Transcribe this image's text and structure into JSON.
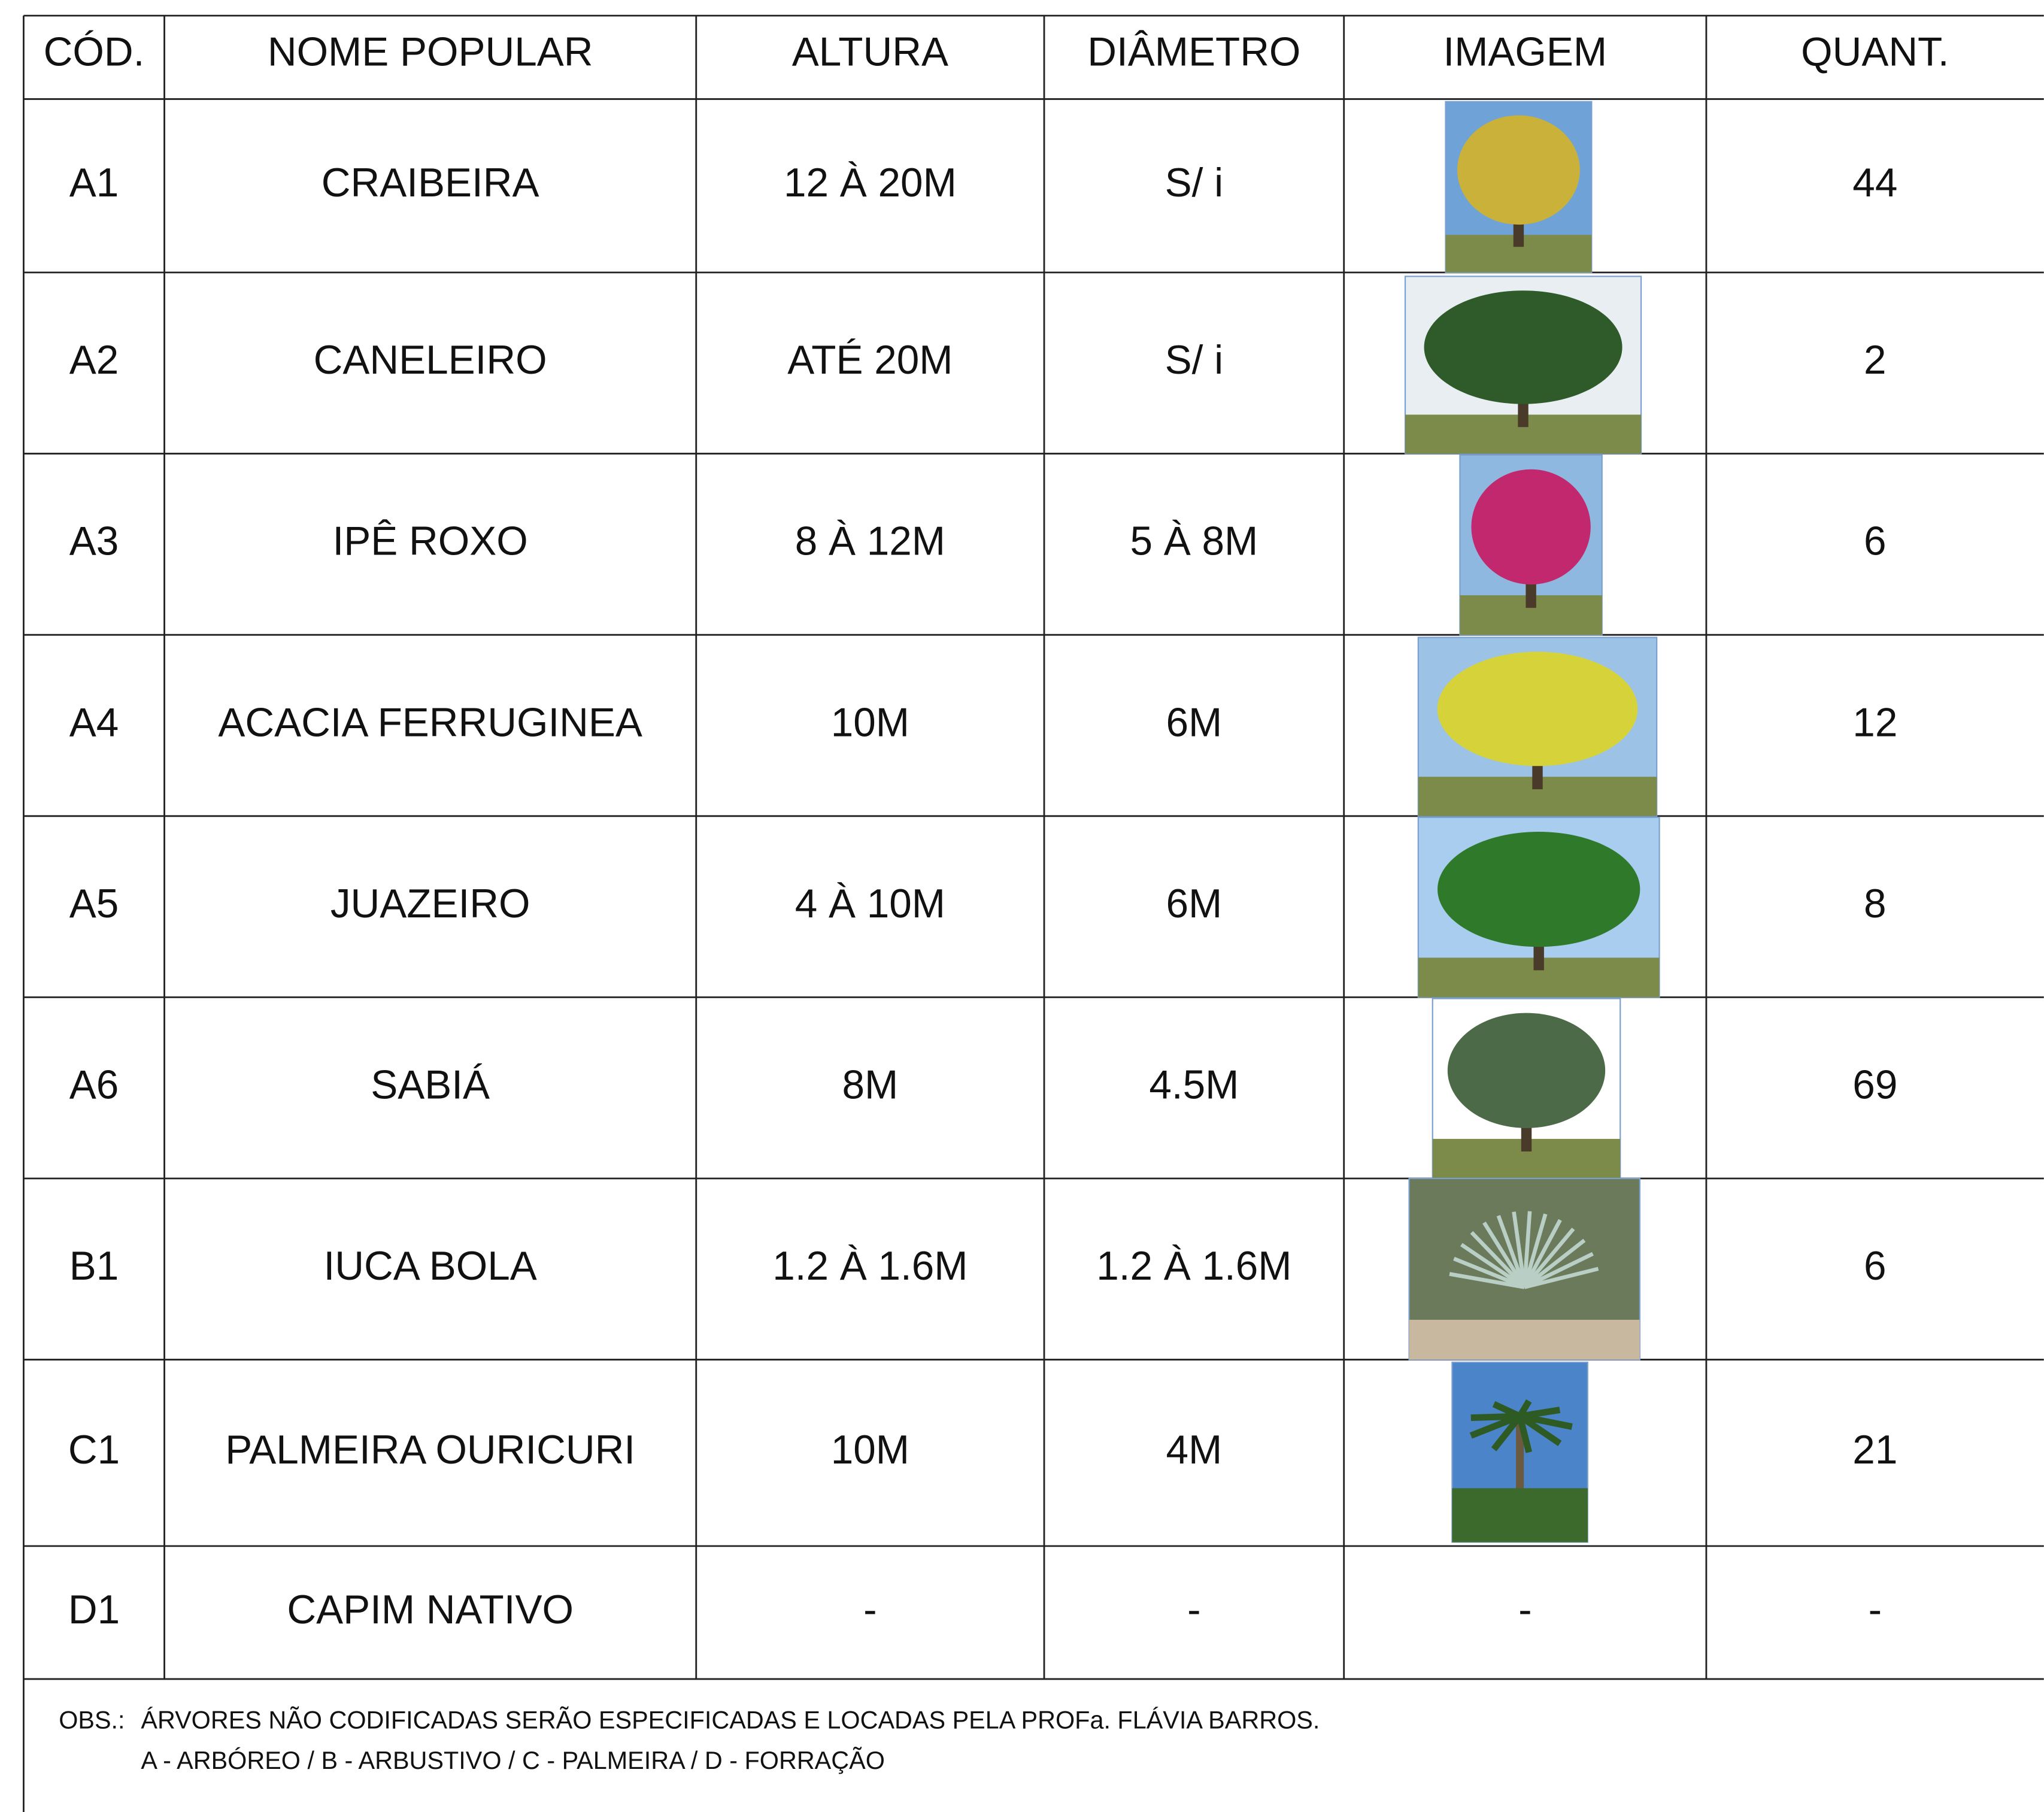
{
  "table": {
    "header": [
      "CÓD.",
      "NOME POPULAR",
      "ALTURA",
      "DIÂMETRO",
      "IMAGEM",
      "QUANT."
    ],
    "rows": [
      {
        "code": "A1",
        "name": "CRAIBEIRA",
        "height": "12 À 20M",
        "diameter": "S/ i",
        "quantity": 44
      },
      {
        "code": "A2",
        "name": "CANELEIRO",
        "height": "ATÉ 20M",
        "diameter": "S/ i",
        "quantity": 2
      },
      {
        "code": "A3",
        "name": "IPÊ ROXO",
        "height": "8 À 12M",
        "diameter": "5 À 8M",
        "quantity": 6
      },
      {
        "code": "A4",
        "name": "ACACIA FERRUGINEA",
        "height": "10M",
        "diameter": "6M",
        "quantity": 12
      },
      {
        "code": "A5",
        "name": "JUAZEIRO",
        "height": "4 À 10M",
        "diameter": "6M",
        "quantity": 8
      },
      {
        "code": "A6",
        "name": "SABIÁ",
        "height": "8M",
        "diameter": "4.5M",
        "quantity": 69
      },
      {
        "code": "B1",
        "name": "IUCA BOLA",
        "height": "1.2 À 1.6M",
        "diameter": "1.2 À 1.6M",
        "quantity": 6
      },
      {
        "code": "C1",
        "name": "PALMEIRA OURICURI",
        "height": "10M",
        "diameter": "4M",
        "quantity": 21
      },
      {
        "code": "D1",
        "name": "CAPIM NATIVO",
        "height": "-",
        "diameter": "-",
        "image": "-",
        "quantity": "-"
      }
    ]
  },
  "notes": {
    "label": "OBS.:",
    "lines": [
      "ÁRVORES NÃO CODIFICADAS SERÃO ESPECIFICADAS E LOCADAS PELA PROFa. FLÁVIA BARROS.",
      "A - ARBÓREO / B - ARBUSTIVO / C - PALMEIRA / D - FORRAÇÃO"
    ]
  }
}
